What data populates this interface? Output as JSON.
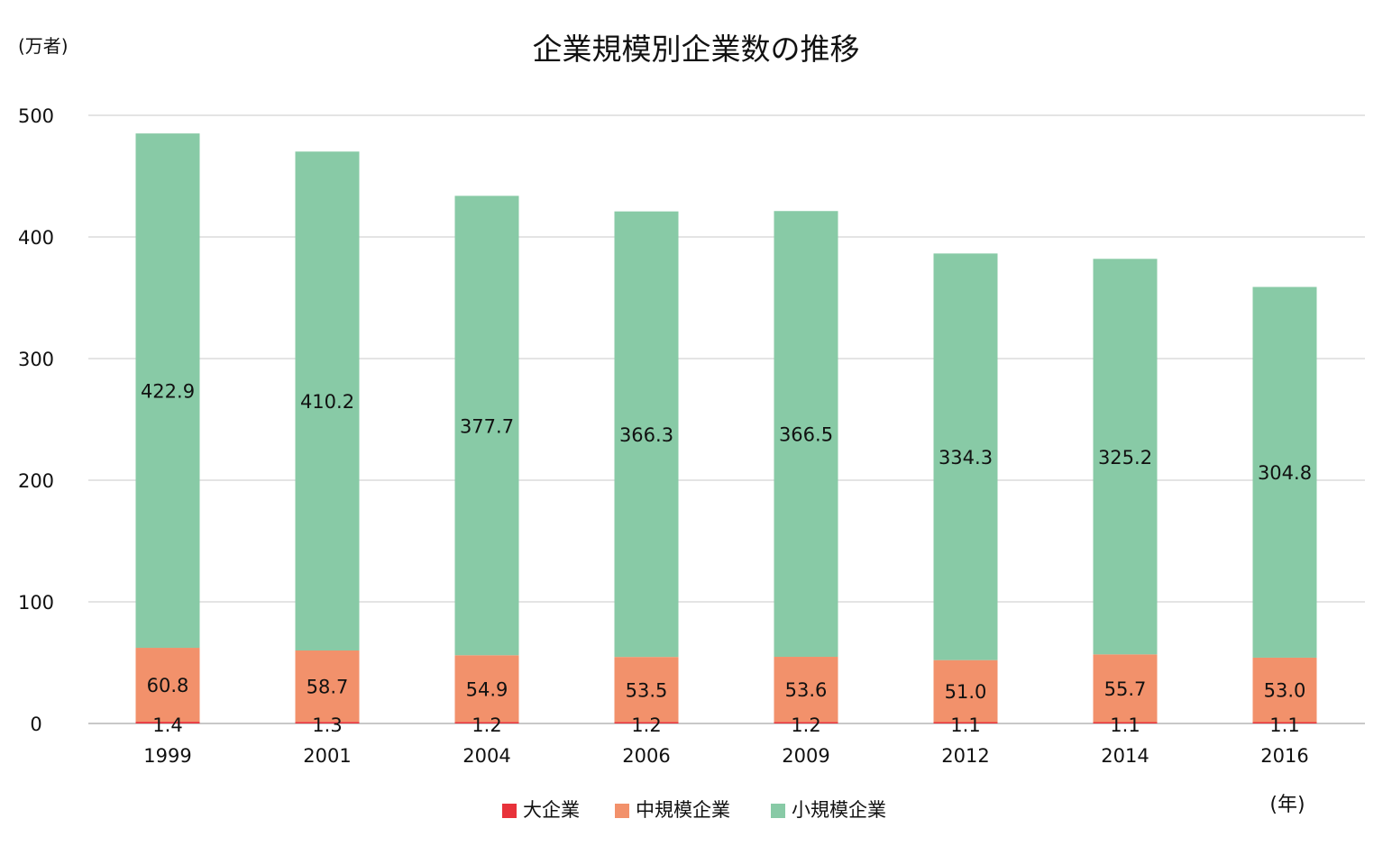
{
  "chart_data": {
    "type": "bar",
    "stacked": true,
    "title": "企業規模別企業数の推移",
    "ylabel": "(万者)",
    "xlabel": "(年)",
    "ylim": [
      0,
      500
    ],
    "yticks": [
      "0",
      "100",
      "200",
      "300",
      "400",
      "500"
    ],
    "ytick_values": [
      0,
      100,
      200,
      300,
      400,
      500
    ],
    "grid": true,
    "legend_position": "bottom",
    "categories": [
      "1999",
      "2001",
      "2004",
      "2006",
      "2009",
      "2012",
      "2014",
      "2016"
    ],
    "series": [
      {
        "name": "大企業",
        "color": "#e8323a",
        "values": [
          1.4,
          1.3,
          1.2,
          1.2,
          1.2,
          1.1,
          1.1,
          1.1
        ],
        "labels": [
          "1.4",
          "1.3",
          "1.2",
          "1.2",
          "1.2",
          "1.1",
          "1.1",
          "1.1"
        ]
      },
      {
        "name": "中規模企業",
        "color": "#f2916b",
        "values": [
          60.8,
          58.7,
          54.9,
          53.5,
          53.6,
          51.0,
          55.7,
          53.0
        ],
        "labels": [
          "60.8",
          "58.7",
          "54.9",
          "53.5",
          "53.6",
          "51.0",
          "55.7",
          "53.0"
        ]
      },
      {
        "name": "小規模企業",
        "color": "#88caa6",
        "values": [
          422.9,
          410.2,
          377.7,
          366.3,
          366.5,
          334.3,
          325.2,
          304.8
        ],
        "labels": [
          "422.9",
          "410.2",
          "377.7",
          "366.3",
          "366.5",
          "334.3",
          "325.2",
          "304.8"
        ]
      }
    ]
  }
}
